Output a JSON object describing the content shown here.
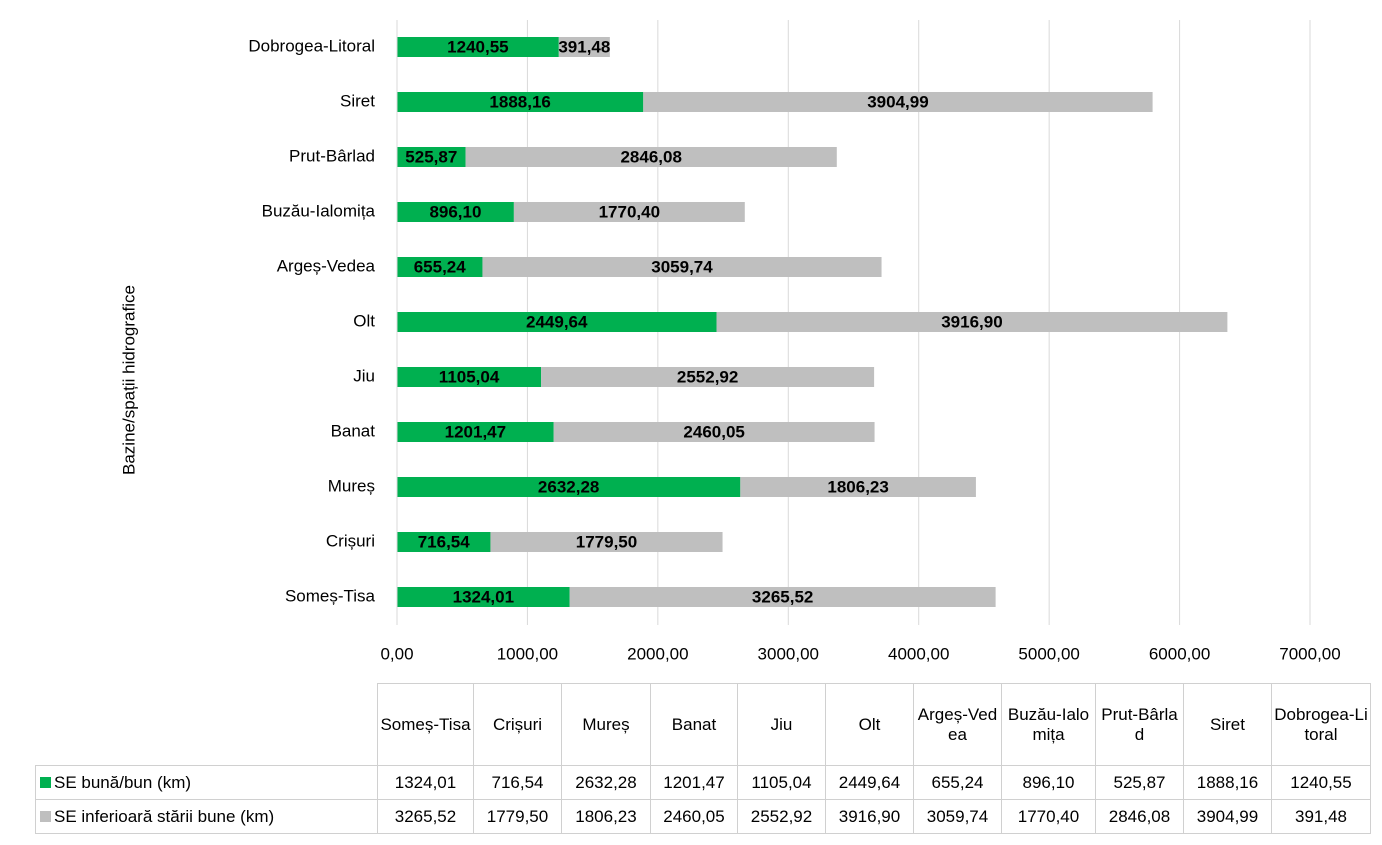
{
  "chart_data": {
    "type": "bar",
    "orientation": "horizontal",
    "stacked": true,
    "y_label": "Bazine/spații hidrografice",
    "categories": [
      "Someș-Tisa",
      "Crișuri",
      "Mureș",
      "Banat",
      "Jiu",
      "Olt",
      "Argeș-Vedea",
      "Buzău-Ialomița",
      "Prut-Bârlad",
      "Siret",
      "Dobrogea-Litoral"
    ],
    "series": [
      {
        "name": "SE bună/bun (km)",
        "color": "#00b050",
        "values": [
          1324.01,
          716.54,
          2632.28,
          1201.47,
          1105.04,
          2449.64,
          655.24,
          896.1,
          525.87,
          1888.16,
          1240.55
        ],
        "value_labels": [
          "1324,01",
          "716,54",
          "2632,28",
          "1201,47",
          "1105,04",
          "2449,64",
          "655,24",
          "896,10",
          "525,87",
          "1888,16",
          "1240,55"
        ]
      },
      {
        "name": "SE inferioară stării bune (km)",
        "color": "#bfbfbf",
        "values": [
          3265.52,
          1779.5,
          1806.23,
          2460.05,
          2552.92,
          3916.9,
          3059.74,
          1770.4,
          2846.08,
          3904.99,
          391.48
        ],
        "value_labels": [
          "3265,52",
          "1779,50",
          "1806,23",
          "2460,05",
          "2552,92",
          "3916,90",
          "3059,74",
          "1770,40",
          "2846,08",
          "3904,99",
          "391,48"
        ]
      }
    ],
    "xlim": [
      0,
      7000
    ],
    "xticks": [
      {
        "value": 0,
        "label": "0,00"
      },
      {
        "value": 1000,
        "label": "1000,00"
      },
      {
        "value": 2000,
        "label": "2000,00"
      },
      {
        "value": 3000,
        "label": "3000,00"
      },
      {
        "value": 4000,
        "label": "4000,00"
      },
      {
        "value": 5000,
        "label": "5000,00"
      },
      {
        "value": 6000,
        "label": "6000,00"
      },
      {
        "value": 7000,
        "label": "7000,00"
      }
    ],
    "grid": true,
    "data_table": true
  }
}
